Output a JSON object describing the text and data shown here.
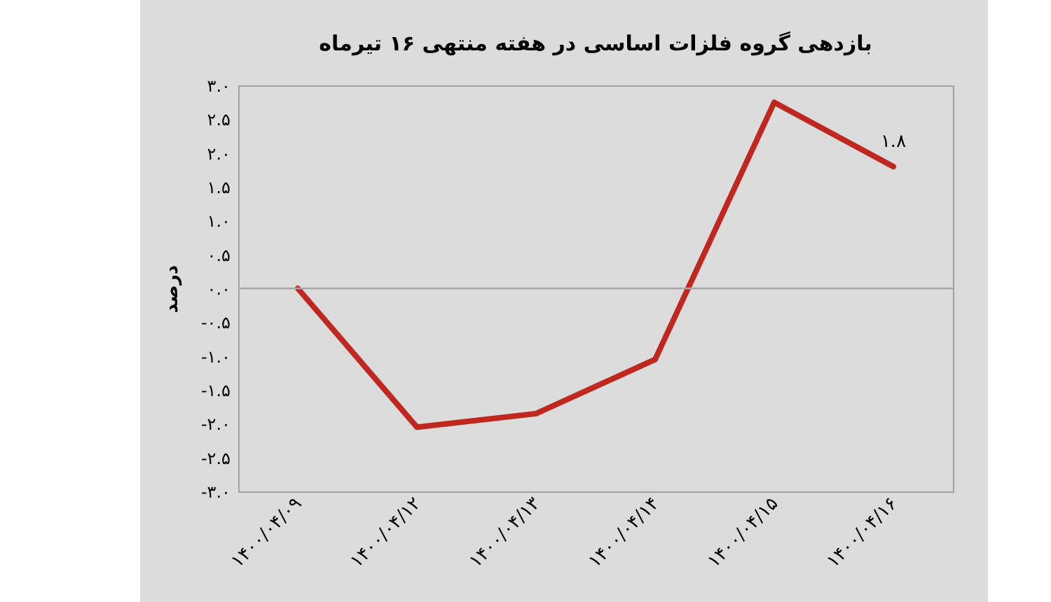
{
  "chart_data": {
    "type": "line",
    "title": "بازدهی گروه فلزات اساسی در هفته منتهی ۱۶ تیرماه",
    "ylabel": "درصد",
    "categories": [
      "۱۴۰۰/۰۴/۰۹",
      "۱۴۰۰/۰۴/۱۲",
      "۱۴۰۰/۰۴/۱۳",
      "۱۴۰۰/۰۴/۱۴",
      "۱۴۰۰/۰۴/۱۵",
      "۱۴۰۰/۰۴/۱۶"
    ],
    "series": [
      {
        "color": "#c0281f",
        "values": [
          0.0,
          -2.05,
          -1.85,
          -1.05,
          2.75,
          1.8
        ],
        "value_labels": [
          null,
          null,
          null,
          null,
          null,
          "۱.۸"
        ]
      }
    ],
    "ylim": [
      -3,
      3
    ],
    "yticks": [
      {
        "value": 3,
        "label": "۳.۰"
      },
      {
        "value": 2.5,
        "label": "۲.۵"
      },
      {
        "value": 2,
        "label": "۲.۰"
      },
      {
        "value": 1.5,
        "label": "۱.۵"
      },
      {
        "value": 1,
        "label": "۱.۰"
      },
      {
        "value": 0.5,
        "label": "۰.۵"
      },
      {
        "value": 0,
        "label": "۰.۰"
      },
      {
        "value": -0.5,
        "label": "-۰.۵"
      },
      {
        "value": -1,
        "label": "-۱.۰"
      },
      {
        "value": -1.5,
        "label": "-۱.۵"
      },
      {
        "value": -2,
        "label": "-۲.۰"
      },
      {
        "value": -2.5,
        "label": "-۲.۵"
      },
      {
        "value": -3,
        "label": "-۳.۰"
      }
    ],
    "ref_lines": [
      {
        "axis": "y",
        "value": 0,
        "color": "#a6a6a6"
      }
    ],
    "grid": false,
    "marker": "none",
    "line_style": "solid"
  }
}
